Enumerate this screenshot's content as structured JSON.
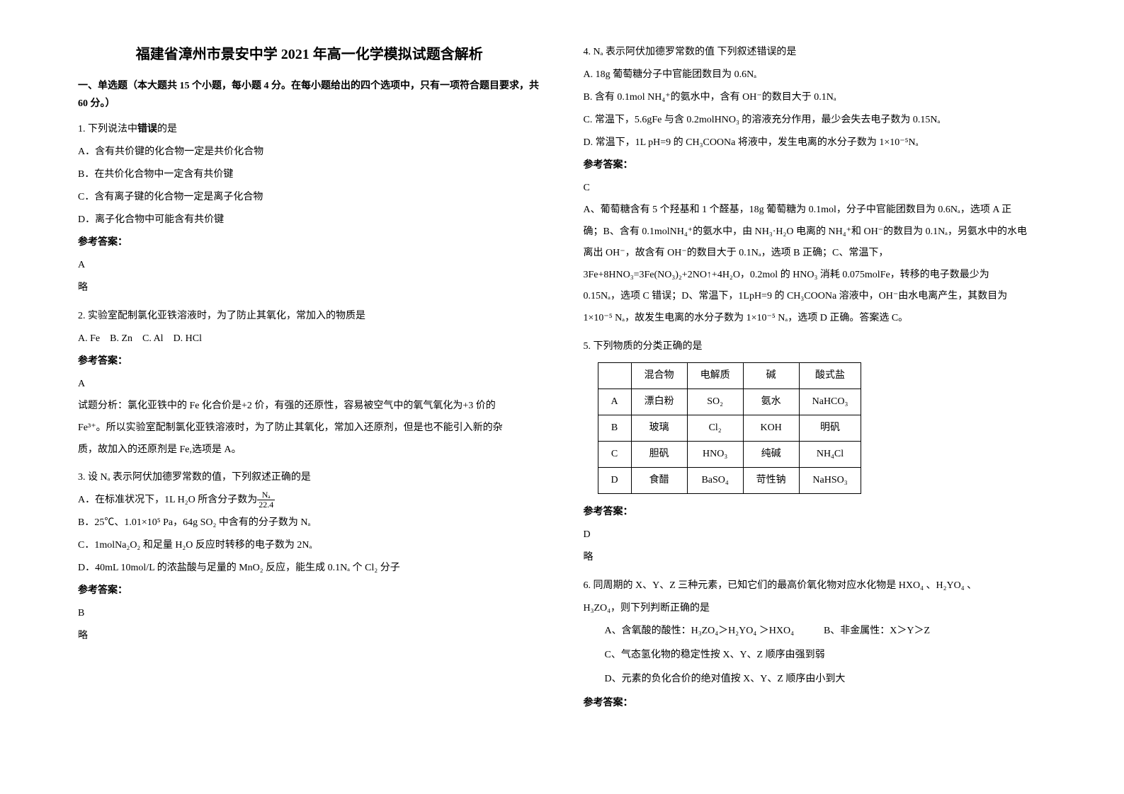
{
  "title": "福建省漳州市景安中学 2021 年高一化学模拟试题含解析",
  "section_header": "一、单选题（本大题共 15 个小题，每小题 4 分。在每小题给出的四个选项中，只有一项符合题目要求，共 60 分。）",
  "answer_label": "参考答案：",
  "q1": {
    "stem": "1. 下列说法中",
    "stem_bold": "错误",
    "stem_tail": "的是",
    "A": "A．含有共价键的化合物一定是共价化合物",
    "B": "B．在共价化合物中一定含有共价键",
    "C": "C．含有离子键的化合物一定是离子化合物",
    "D": "D．离子化合物中可能含有共价键",
    "answer": "A",
    "note": "略"
  },
  "q2": {
    "stem": "2. 实验室配制氯化亚铁溶液时，为了防止其氧化，常加入的物质是",
    "opts": "A. Fe　B. Zn　C. Al　D. HCl",
    "answer": "A",
    "expl1": "试题分析：氯化亚铁中的 Fe 化合价是+2 价，有强的还原性，容易被空气中的氧气氧化为+3 价的",
    "expl2": "Fe³⁺。所以实验室配制氯化亚铁溶液时，为了防止其氧化，常加入还原剂，但是也不能引入新的杂",
    "expl3": "质，故加入的还原剂是 Fe,选项是 A。"
  },
  "q3": {
    "stem": "3. 设 Nₐ 表示阿伏加德罗常数的值，下列叙述正确的是",
    "A_pre": "A．在标准状况下，1L H₂O 所含分子数为",
    "A_num": "Nₐ",
    "A_den": "22.4",
    "B": "B．25℃、1.01×10⁵ Pa，64g SO₂ 中含有的分子数为 Nₐ",
    "C": "C．1molNa₂O₂ 和足量 H₂O 反应时转移的电子数为 2Nₐ",
    "D": "D．40mL 10mol/L 的浓盐酸与足量的 MnO₂ 反应，能生成 0.1Nₐ 个 Cl₂ 分子",
    "answer": "B",
    "note": "略"
  },
  "q4": {
    "stem": "4. Nₐ 表示阿伏加德罗常数的值 下列叙述错误的是",
    "A": "A. 18g 葡萄糖分子中官能团数目为 0.6Nₐ",
    "B": "B. 含有 0.1mol NH₄⁺的氨水中，含有 OH⁻的数目大于 0.1Nₐ",
    "C": "C. 常温下，5.6gFe 与含 0.2molHNO₃ 的溶液充分作用，最少会失去电子数为 0.15Nₐ",
    "D": "D. 常温下，1L pH=9 的 CH₃COONa 将液中，发生电离的水分子数为 1×10⁻⁵Nₐ",
    "answer": "C",
    "expl1": "A、葡萄糖含有 5 个羟基和 1 个醛基，18g 葡萄糖为 0.1mol，分子中官能团数目为 0.6Nₐ，选项 A 正",
    "expl2": "确；B、含有 0.1molNH₄⁺的氨水中，由 NH₃·H₂O 电离的 NH₄⁺和 OH⁻的数目为 0.1Nₐ，另氨水中的水电",
    "expl3": "离出 OH⁻，故含有 OH⁻的数目大于 0.1Nₐ，选项 B 正确；C、常温下，",
    "expl4": "3Fe+8HNO₃=3Fe(NO₃)₂+2NO↑+4H₂O，0.2mol 的 HNO₃ 消耗 0.075molFe，转移的电子数最少为",
    "expl5": "0.15Nₐ，选项 C 错误；D、常温下，1LpH=9 的 CH₃COONa 溶液中，OH⁻由水电离产生，其数目为",
    "expl6": "1×10⁻⁵ Nₐ，故发生电离的水分子数为 1×10⁻⁵ Nₐ，选项 D 正确。答案选 C。"
  },
  "q5": {
    "stem": "5. 下列物质的分类正确的是",
    "table": {
      "headers": [
        "",
        "混合物",
        "电解质",
        "碱",
        "酸式盐"
      ],
      "rows": [
        [
          "A",
          "漂白粉",
          "SO₂",
          "氨水",
          "NaHCO₃"
        ],
        [
          "B",
          "玻璃",
          "Cl₂",
          "KOH",
          "明矾"
        ],
        [
          "C",
          "胆矾",
          "HNO₃",
          "纯碱",
          "NH₄Cl"
        ],
        [
          "D",
          "食醋",
          "BaSO₄",
          "苛性钠",
          "NaHSO₃"
        ]
      ]
    },
    "answer": "D",
    "note": "略"
  },
  "q6": {
    "stem1": "6. 同周期的 X、Y、Z 三种元素，已知它们的最高价氧化物对应水化物是 HXO₄ 、H₂YO₄ 、",
    "stem2": "H₃ZO₄，则下列判断正确的是",
    "A": "A、含氧酸的酸性：H₃ZO₄＞H₂YO₄ ＞HXO₄",
    "B": "B、非金属性：X＞Y＞Z",
    "C": "C、气态氢化物的稳定性按 X、Y、Z 顺序由强到弱",
    "D": "D、元素的负化合价的绝对值按 X、Y、Z 顺序由小到大"
  }
}
